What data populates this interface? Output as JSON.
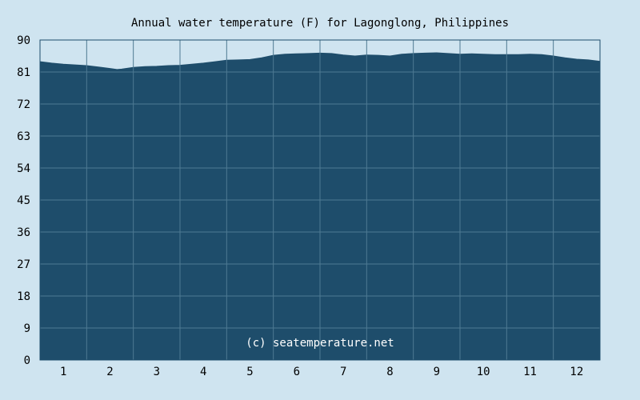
{
  "chart_data": {
    "type": "area",
    "title": "Annual water temperature (F) for Lagonglong, Philippines",
    "xlabel": "",
    "ylabel": "",
    "x_ticks": [
      "1",
      "2",
      "3",
      "4",
      "5",
      "6",
      "7",
      "8",
      "9",
      "10",
      "11",
      "12"
    ],
    "y_ticks": [
      "0",
      "9",
      "18",
      "27",
      "36",
      "45",
      "54",
      "63",
      "72",
      "81",
      "90"
    ],
    "xlim": [
      0.5,
      12.5
    ],
    "ylim": [
      0,
      90
    ],
    "grid": true,
    "x": [
      0.5,
      0.75,
      1.0,
      1.25,
      1.5,
      1.75,
      2.0,
      2.15,
      2.25,
      2.5,
      2.75,
      3.0,
      3.25,
      3.5,
      3.75,
      4.0,
      4.25,
      4.5,
      4.75,
      5.0,
      5.25,
      5.5,
      5.75,
      6.0,
      6.25,
      6.5,
      6.75,
      7.0,
      7.25,
      7.5,
      7.75,
      8.0,
      8.25,
      8.5,
      8.75,
      9.0,
      9.25,
      9.5,
      9.75,
      10.0,
      10.25,
      10.5,
      10.75,
      11.0,
      11.25,
      11.5,
      11.75,
      12.0,
      12.25,
      12.5
    ],
    "values": [
      83.9,
      83.5,
      83.2,
      83.0,
      82.8,
      82.4,
      82.0,
      81.7,
      81.8,
      82.3,
      82.5,
      82.6,
      82.8,
      82.9,
      83.2,
      83.5,
      83.9,
      84.3,
      84.4,
      84.5,
      85.0,
      85.7,
      86.0,
      86.1,
      86.2,
      86.3,
      86.2,
      85.8,
      85.5,
      85.8,
      85.7,
      85.5,
      86.0,
      86.2,
      86.3,
      86.4,
      86.2,
      86.0,
      86.1,
      86.0,
      85.9,
      85.9,
      85.9,
      86.0,
      85.9,
      85.5,
      85.0,
      84.6,
      84.4,
      84.0
    ],
    "series": [
      {
        "values_ref": "values",
        "color": "#1e4d6b"
      }
    ],
    "colors": {
      "background": "#cfe4f0",
      "plot_background": "#cfe4f0",
      "fill": "#1e4d6b",
      "grid": "#4f7a93",
      "axis": "#1e4d6b"
    },
    "annotation": "(c) seatemperature.net"
  }
}
